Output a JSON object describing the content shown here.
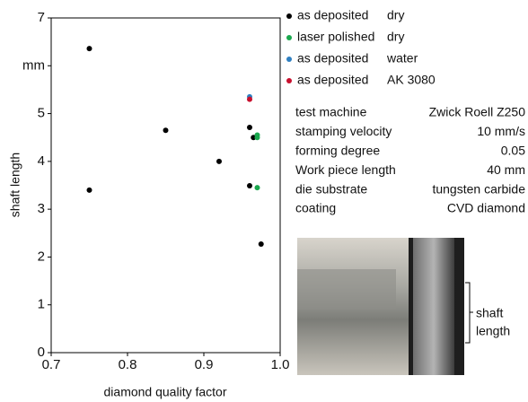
{
  "chart_data": {
    "type": "scatter",
    "x_label": "diamond quality factor",
    "y_label": "shaft length",
    "xlim": [
      0.7,
      1.0
    ],
    "xticks": [
      0.7,
      0.8,
      0.9,
      {
        "value": 1.0,
        "label": "1.0"
      }
    ],
    "ylim": [
      0,
      7
    ],
    "yticks": [
      0,
      1,
      2,
      3,
      4,
      5,
      {
        "value": 6,
        "label": "mm"
      },
      7
    ],
    "series": [
      {
        "name": "as deposited",
        "lubrication": "dry",
        "color": "#000000",
        "x": [
          0.75,
          0.75,
          0.85,
          0.92,
          0.96,
          0.965,
          0.96,
          0.975
        ],
        "values": [
          6.36,
          3.4,
          4.65,
          4.0,
          4.71,
          4.5,
          3.49,
          2.27
        ]
      },
      {
        "name": "laser polished",
        "lubrication": "dry",
        "color": "#1aa84e",
        "x": [
          0.97,
          0.97,
          0.97
        ],
        "values": [
          4.55,
          4.5,
          3.45
        ]
      },
      {
        "name": "as deposited",
        "lubrication": "water",
        "color": "#2f7fc1",
        "x": [
          0.96
        ],
        "values": [
          5.35
        ]
      },
      {
        "name": "as deposited",
        "lubrication": "AK 3080",
        "color": "#c8102e",
        "x": [
          0.96
        ],
        "values": [
          5.3
        ]
      }
    ],
    "parameters": [
      [
        "test machine",
        "Zwick Roell Z250"
      ],
      [
        "stamping velocity",
        "10 mm/s"
      ],
      [
        "forming degree",
        "0.05"
      ],
      [
        "Work piece length",
        "40 mm"
      ],
      [
        "die substrate",
        "tungsten carbide"
      ],
      [
        "coating",
        "CVD diamond"
      ]
    ],
    "photo_annotation": [
      "shaft",
      "length"
    ]
  }
}
